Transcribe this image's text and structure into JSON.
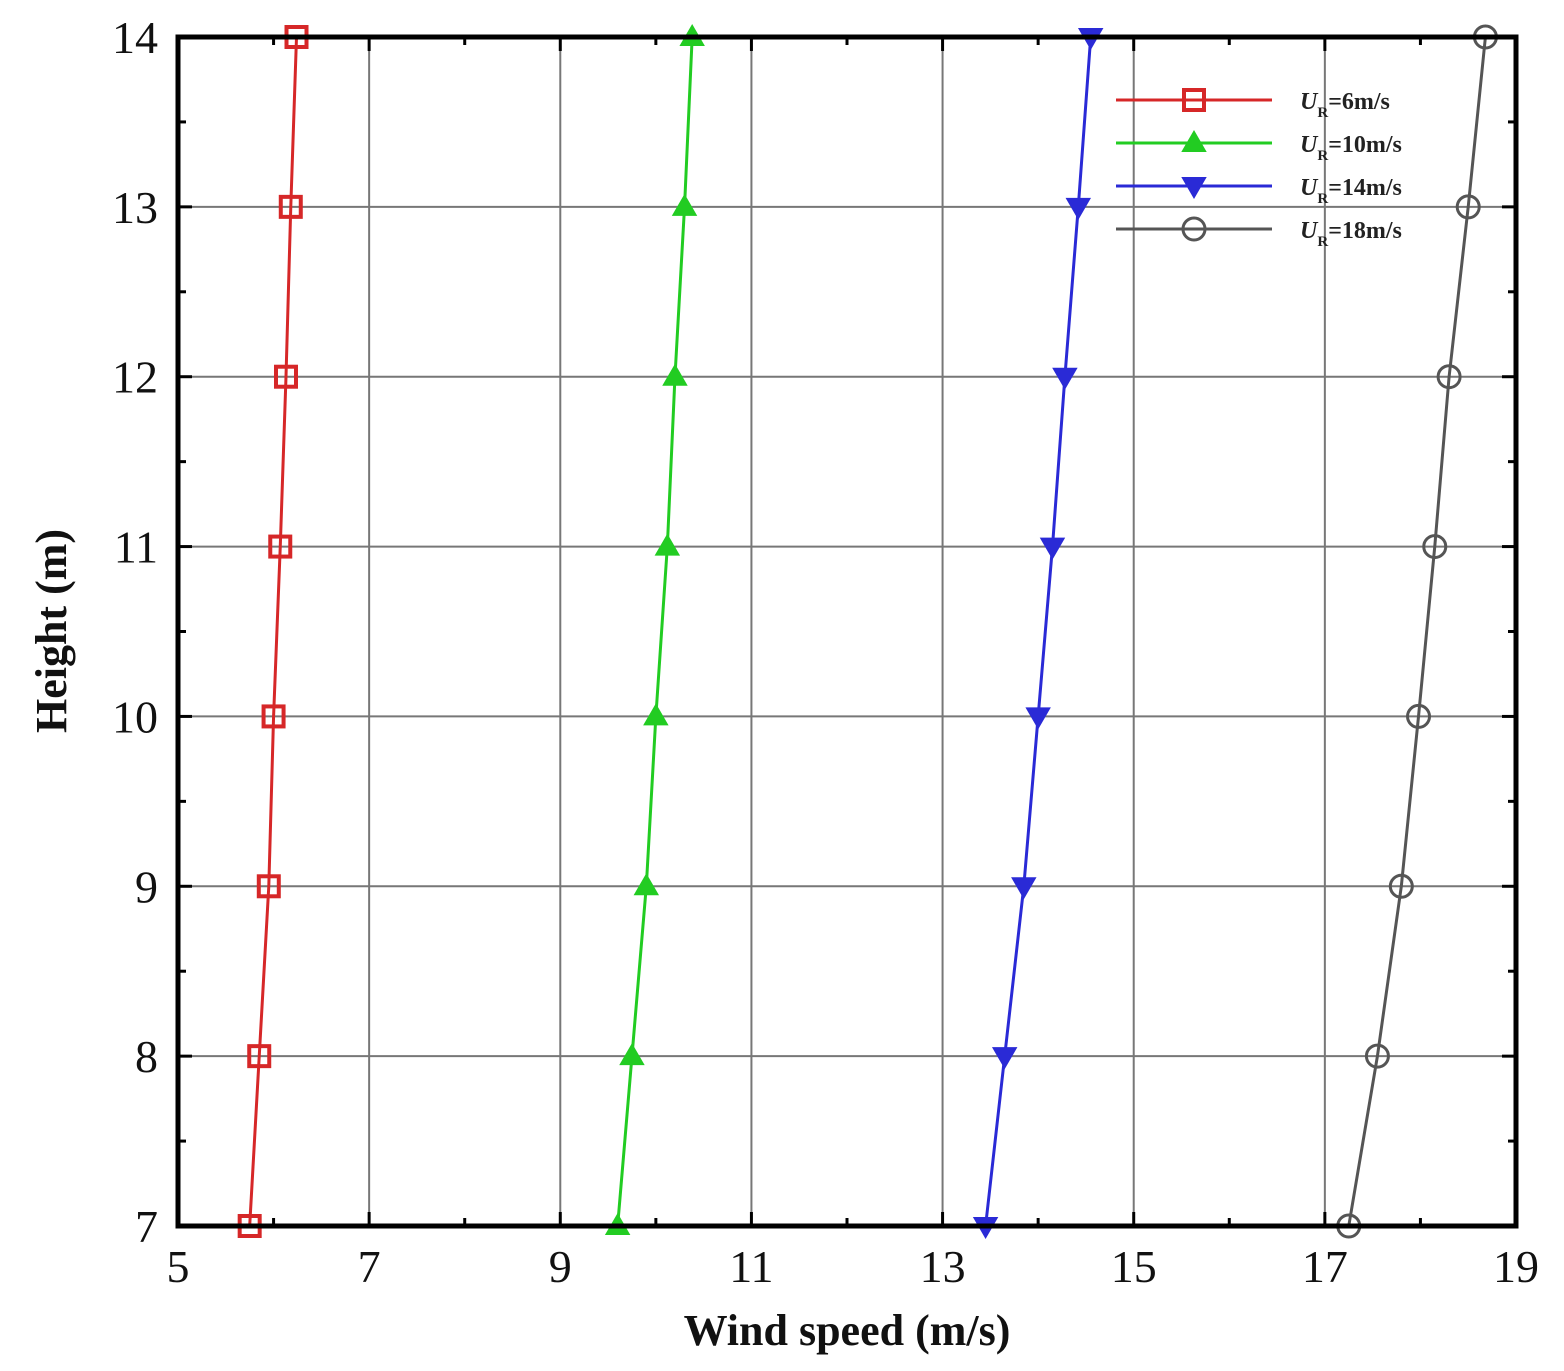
{
  "chart_data": {
    "type": "line",
    "title": "",
    "xlabel": "Wind speed (m/s)",
    "ylabel": "Height (m)",
    "xlim": [
      5,
      19
    ],
    "ylim": [
      7,
      14
    ],
    "xticks": [
      5,
      7,
      9,
      11,
      13,
      15,
      17,
      19
    ],
    "yticks": [
      7,
      8,
      9,
      10,
      11,
      12,
      13,
      14
    ],
    "grid": true,
    "legend_position": "top-right",
    "series": [
      {
        "name": "U_R=6m/s",
        "legend_symbol": "U",
        "legend_subscript": "R",
        "legend_value": "=6m/s",
        "color": "#d62728",
        "marker": "square",
        "x": [
          5.75,
          5.85,
          5.95,
          6.0,
          6.07,
          6.13,
          6.18,
          6.24
        ],
        "y": [
          7,
          8,
          9,
          10,
          11,
          12,
          13,
          14
        ]
      },
      {
        "name": "U_R=10m/s",
        "legend_symbol": "U",
        "legend_subscript": "R",
        "legend_value": "=10m/s",
        "color": "#22cc22",
        "marker": "triangle-up",
        "x": [
          9.6,
          9.75,
          9.9,
          10.0,
          10.12,
          10.2,
          10.3,
          10.38
        ],
        "y": [
          7,
          8,
          9,
          10,
          11,
          12,
          13,
          14
        ]
      },
      {
        "name": "U_R=14m/s",
        "legend_symbol": "U",
        "legend_subscript": "R",
        "legend_value": "=14m/s",
        "color": "#2a2ad6",
        "marker": "triangle-down",
        "x": [
          13.45,
          13.65,
          13.85,
          14.0,
          14.15,
          14.28,
          14.42,
          14.55
        ],
        "y": [
          7,
          8,
          9,
          10,
          11,
          12,
          13,
          14
        ]
      },
      {
        "name": "U_R=18m/s",
        "legend_symbol": "U",
        "legend_subscript": "R",
        "legend_value": "=18m/s",
        "color": "#555555",
        "marker": "circle",
        "x": [
          17.25,
          17.55,
          17.8,
          17.98,
          18.15,
          18.3,
          18.5,
          18.68
        ],
        "y": [
          7,
          8,
          9,
          10,
          11,
          12,
          13,
          14
        ]
      }
    ]
  }
}
